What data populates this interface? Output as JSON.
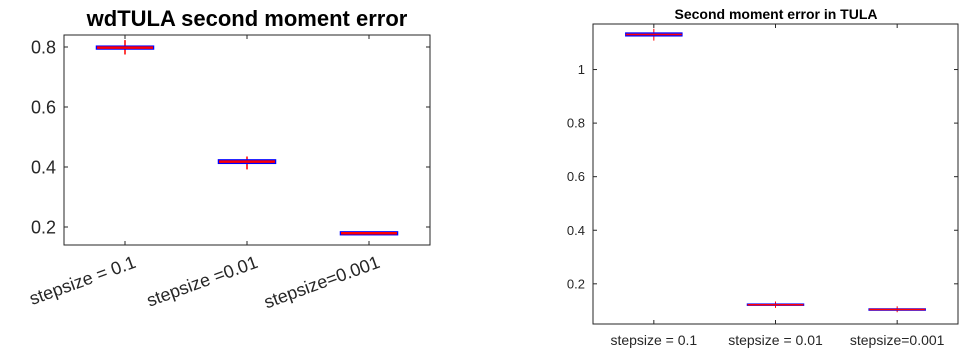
{
  "chart_data": [
    {
      "type": "box",
      "title": "wdTULA second moment error",
      "xlabel": "",
      "ylabel": "",
      "categories": [
        "stepsize = 0.1",
        "stepsize =0.01",
        "stepsize=0.001"
      ],
      "ylim": [
        0.14,
        0.84
      ],
      "yticks": [
        "0.2",
        "0.4",
        "0.6",
        "0.8"
      ],
      "grid": false,
      "boxes": [
        {
          "q1": 0.795,
          "median": 0.798,
          "q3": 0.801,
          "whisker_low": 0.775,
          "whisker_high": 0.823
        },
        {
          "q1": 0.414,
          "median": 0.418,
          "q3": 0.422,
          "whisker_low": 0.392,
          "whisker_high": 0.435
        },
        {
          "q1": 0.176,
          "median": 0.179,
          "q3": 0.182,
          "whisker_low": 0.173,
          "whisker_high": 0.185
        }
      ]
    },
    {
      "type": "box",
      "title": "Second moment error in TULA",
      "xlabel": "",
      "ylabel": "",
      "categories": [
        "stepsize = 0.1",
        "stepsize = 0.01",
        "stepsize=0.001"
      ],
      "ylim": [
        0.05,
        1.17
      ],
      "yticks": [
        "0.2",
        "0.4",
        "0.6",
        "0.8",
        "1"
      ],
      "grid": false,
      "boxes": [
        {
          "q1": 1.126,
          "median": 1.131,
          "q3": 1.136,
          "whisker_low": 1.108,
          "whisker_high": 1.152
        },
        {
          "q1": 0.121,
          "median": 0.122,
          "q3": 0.124,
          "whisker_low": 0.11,
          "whisker_high": 0.134
        },
        {
          "q1": 0.102,
          "median": 0.104,
          "q3": 0.106,
          "whisker_low": 0.094,
          "whisker_high": 0.116
        }
      ]
    }
  ],
  "colors": {
    "box_edge": "#0000ff",
    "box_edge_thin": "#5a5aff",
    "median": "#ff0000",
    "whisker": "#ff0000",
    "axis": "#262626"
  }
}
